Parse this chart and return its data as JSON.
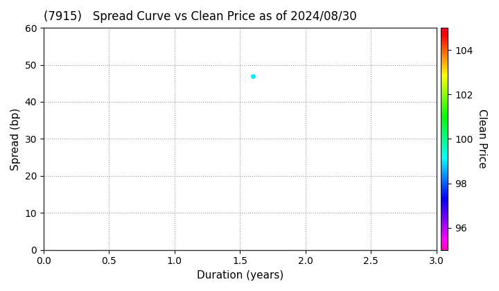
{
  "title": "(7915)   Spread Curve vs Clean Price as of 2024/08/30",
  "xlabel": "Duration (years)",
  "ylabel": "Spread (bp)",
  "colorbar_label": "Clean Price",
  "xlim": [
    0.0,
    3.0
  ],
  "ylim": [
    0,
    60
  ],
  "xticks": [
    0.0,
    0.5,
    1.0,
    1.5,
    2.0,
    2.5,
    3.0
  ],
  "yticks": [
    0,
    10,
    20,
    30,
    40,
    50,
    60
  ],
  "colorbar_min": 95,
  "colorbar_max": 105,
  "colorbar_ticks": [
    96,
    98,
    100,
    102,
    104
  ],
  "scatter_x": [
    1.6
  ],
  "scatter_y": [
    47
  ],
  "scatter_price": [
    99.0
  ],
  "point_size": 15,
  "background_color": "#ffffff",
  "grid_color": "#999999",
  "title_fontsize": 12,
  "axis_label_fontsize": 11,
  "tick_fontsize": 10
}
